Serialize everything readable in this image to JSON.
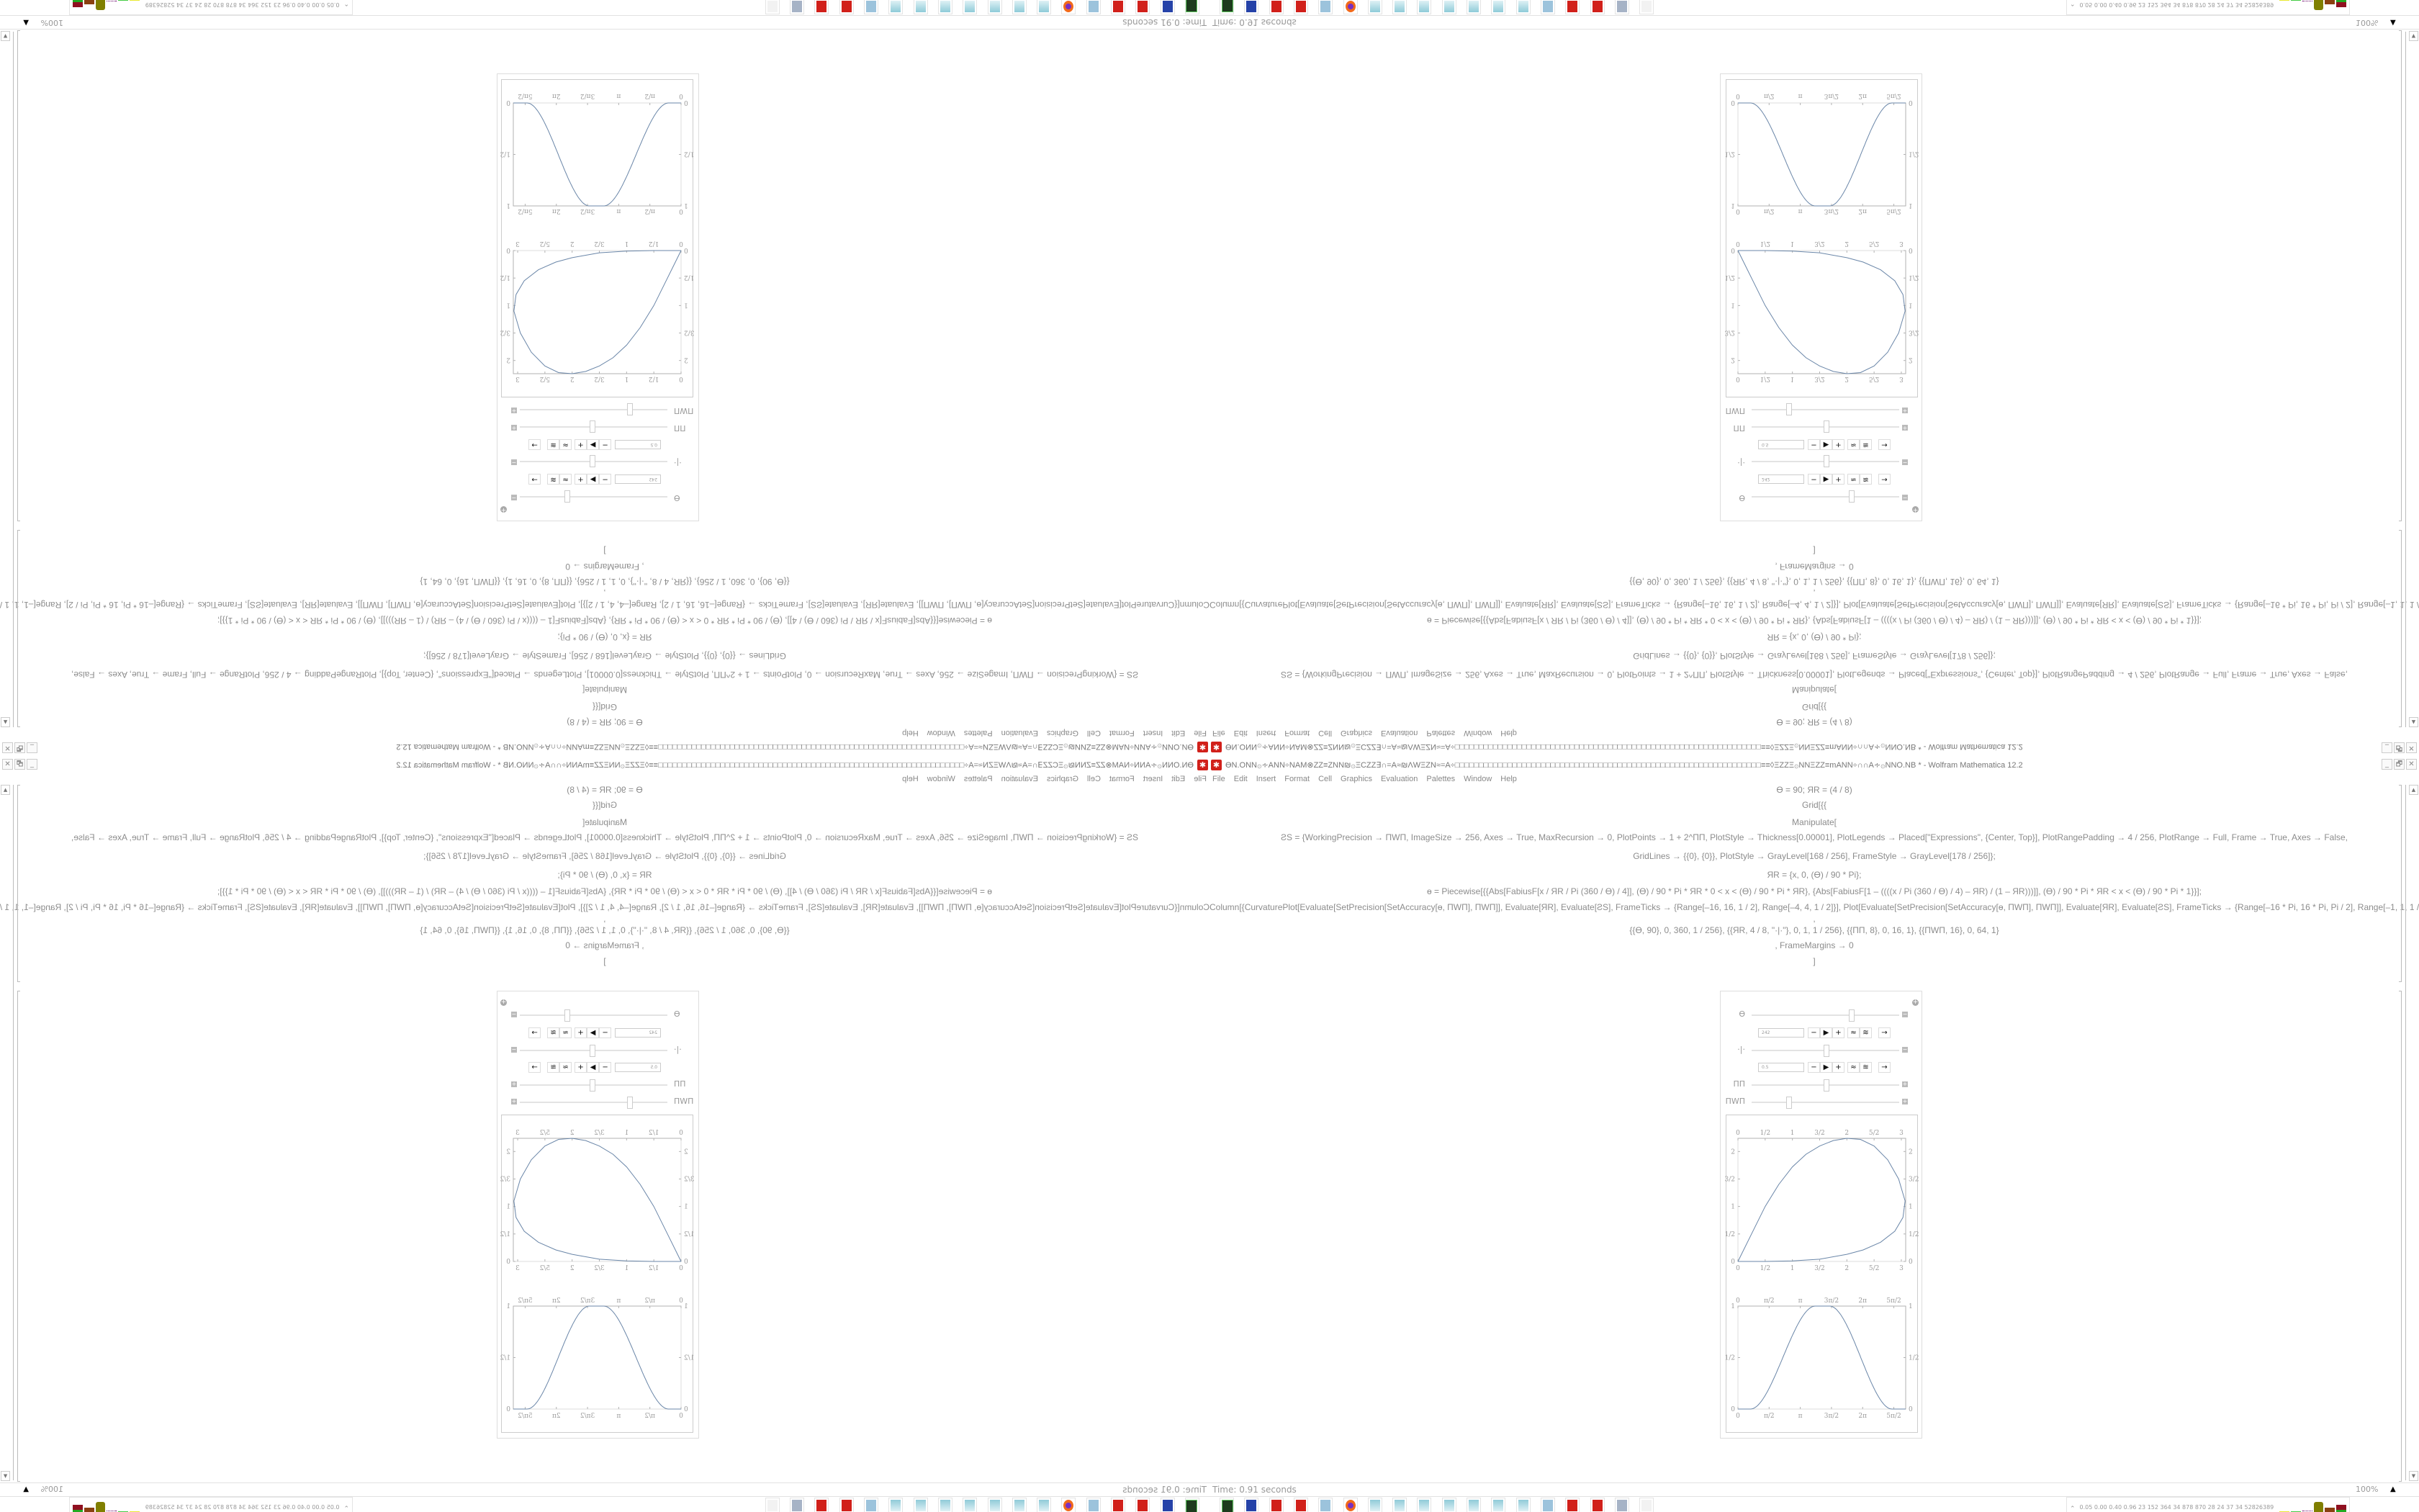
{
  "window": {
    "title": "ϴN.ONN۞∻ANN÷NAM⊗ZZ≡ZNN₪۞ΞCZZ∃∩=A≈₪ΛWΞZN≈=A÷□□□□□□□□□□□□□□□□□□□□□□□□□□□□□□□□□□□□□□□□□□□□□□□□□□□□□□□□□□□□□□□□≡≡◊ΞZZΞ۞NNΞZZ≡mANN÷∩∩A∻۞NNO.NB * - Wolfram Mathematica 12.2",
    "minimize": "_",
    "restore": "🗗",
    "close": "✕",
    "menu": [
      "File",
      "Edit",
      "Insert",
      "Format",
      "Cell",
      "Graphics",
      "Evaluation",
      "Palettes",
      "Window",
      "Help"
    ]
  },
  "notebook": {
    "lines": [
      "ϴ = 90; ЯR = (4 / 8)",
      "Grid[{{",
      "Manipulate[",
      "ƧS = {WorkingPrecision → ПWП, ImageSize → 256, Axes → True, MaxRecursion → 0, PlotPoints → 1 + 2^ПП, PlotStyle → Thickness[0.00001], PlotLegends → Placed[\"Expressions\", {Center, Top}], PlotRangePadding → 4 / 256, PlotRange → Full, Frame → True, Axes → False,",
      "GridLines → {{0}, {0}}, PlotStyle → GrayLevel[168 / 256], FrameStyle → GrayLevel[178 / 256]};",
      "ЯR = {x, 0, (ϴ) / 90 * Pi};",
      "ɵ = Piecewise[{{Abs[FabiusF[x / ЯR / Pi (360 / ϴ) / 4]], (ϴ) / 90 * Pi * ЯR * 0 < x < (ϴ) / 90 * Pi * ЯR}, {Abs[FabiusF[1 – ((((x / Pi (360 / ϴ) / 4) – ЯR) / (1 – ЯR)))]], (ϴ) / 90 * Pi * ЯR < x < (ϴ) / 90 * Pi * 1}}];",
      "Column[{CurvaturePlot[Evaluate[SetPrecision[SetAccuracy[ɵ, ПWП], ПWП]], Evaluate[ЯR], Evaluate[ƧS], FrameTicks → {Range[–16, 16, 1 / 2], Range[–4, 4, 1 / 2]}], Plot[Evaluate[SetPrecision[SetAccuracy[ɵ, ПWП], ПWП]], Evaluate[ЯR], Evaluate[ƧS], FrameTicks → {Range[–16 * Pi, 16 * Pi, Pi / 2], Range[–1, 1, 1 / 2]}] }]",
      ",",
      "{{ϴ, 90}, 0, 360, 1 / 256}, {{ЯR, 4 / 8, \"·|·\"}, 0, 1, 1 / 256}, {{ПП, 8}, 0, 16, 1}, {{ПWП, 16}, 0, 64, 1}",
      ", FrameMargins → 0",
      "]"
    ]
  },
  "manipulate": {
    "controls": [
      {
        "label": "ϴ",
        "value": "242",
        "fraction": 0.672,
        "toggle": "−",
        "animator": true
      },
      {
        "label": "·|·",
        "value": "0.5",
        "fraction": 0.5,
        "toggle": "−",
        "animator": true
      },
      {
        "label": "ПП",
        "fraction": 0.5,
        "toggle": "+",
        "animator": false
      },
      {
        "label": "ПWП",
        "fraction": 0.25,
        "toggle": "+",
        "animator": false
      }
    ],
    "animator_buttons": [
      "−",
      "▶",
      "+",
      "≈",
      "≋",
      "→"
    ],
    "plot1": {
      "x_ticks": [
        "0",
        "1/2",
        "1",
        "3/2",
        "2",
        "5/2",
        "3"
      ],
      "y_ticks": [
        "0",
        "1/2",
        "1",
        "3/2",
        "2"
      ]
    },
    "plot2": {
      "x_ticks": [
        "0",
        "π/2",
        "π",
        "3π/2",
        "2π",
        "5π/2"
      ],
      "y_ticks": [
        "0",
        "1/2",
        "1"
      ]
    },
    "curve_color": "#6a86a8"
  },
  "status": {
    "time": "Time: 0.91 seconds",
    "zoom": "100%"
  },
  "taskbar": {
    "icons": [
      "terminal-icon",
      "floppy-64-icon",
      "mathematica-icon",
      "mathematica-icon",
      "calculator-icon",
      "firefox-icon",
      "notepad-icon",
      "notepad-icon",
      "notepad-icon",
      "notepad-icon",
      "notepad-icon",
      "notepad-icon",
      "notepad-icon",
      "calculator-icon",
      "mathematica-icon",
      "mathematica-icon",
      "scroll-icon",
      "faded-arrow-icon"
    ],
    "tray_text": "0.05 0.00 0.40 0.96  23  152  364  34  878  870  28  24  37  34  52826389"
  }
}
